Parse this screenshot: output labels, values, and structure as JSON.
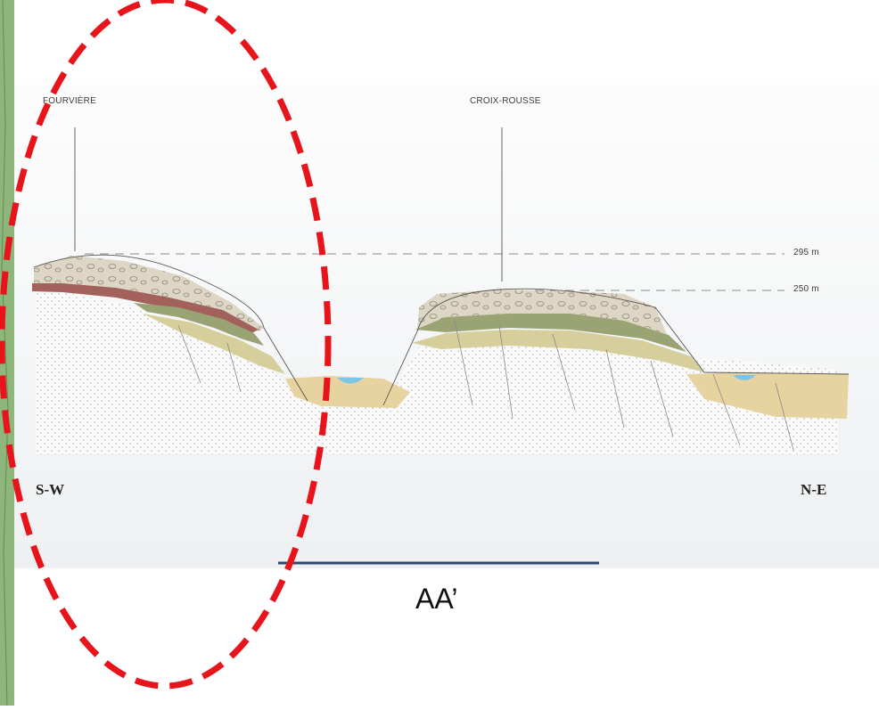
{
  "cross_section": {
    "peaks": [
      {
        "name": "FOURVIÈRE"
      },
      {
        "name": "CROIX-ROUSSE"
      }
    ],
    "elevations": [
      {
        "label": "295 m"
      },
      {
        "label": "250 m"
      }
    ],
    "orientation": {
      "left": "S-W",
      "right": "N-E"
    }
  },
  "caption": "AA’",
  "highlight": {
    "color": "#e8141c",
    "style": "dashed-ellipse"
  },
  "colors": {
    "bedrock_dots": "#bdbdbd",
    "alluvium": "#e6d3a0",
    "water": "#7cc4e8",
    "conglomerate": "#ddd6c4",
    "red_layer": "#a2625b",
    "green_layer": "#9aa374",
    "scale_bar": "#2f4a6c",
    "map_strip": "#8eb67a"
  }
}
